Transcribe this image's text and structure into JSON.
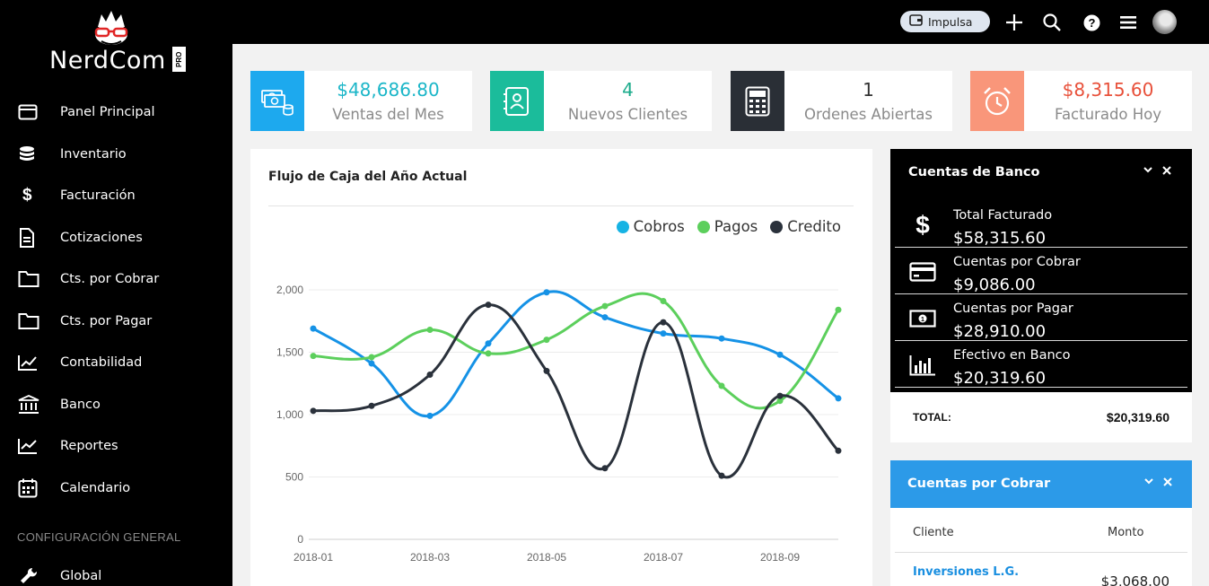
{
  "logo": {
    "text": "NerdCom",
    "badge": "PRO"
  },
  "sidebar": {
    "items": [
      {
        "label": "Panel Principal",
        "icon": "dashboard-icon"
      },
      {
        "label": "Inventario",
        "icon": "database-icon"
      },
      {
        "label": "Facturación",
        "icon": "dollar-icon"
      },
      {
        "label": "Cotizaciones",
        "icon": "document-icon"
      },
      {
        "label": "Cts. por Cobrar",
        "icon": "folder-icon"
      },
      {
        "label": "Cts. por Pagar",
        "icon": "folder-icon"
      },
      {
        "label": "Contabilidad",
        "icon": "line-chart-icon"
      },
      {
        "label": "Banco",
        "icon": "bank-icon"
      },
      {
        "label": "Reportes",
        "icon": "area-chart-icon"
      },
      {
        "label": "Calendario",
        "icon": "calendar-icon"
      }
    ],
    "section_title": "CONFIGURACIÓN GENERAL",
    "global_label": "Global"
  },
  "topbar": {
    "impulsa_label": "Impulsa"
  },
  "stats": [
    {
      "value": "$48,686.80",
      "label": "Ventas del Mes",
      "box_color": "#1da9ee",
      "value_color": "#1bb6c8",
      "icon": "money-icon"
    },
    {
      "value": "4",
      "label": "Nuevos Clientes",
      "box_color": "#1bbc9b",
      "value_color": "#1bab8b",
      "icon": "contacts-icon"
    },
    {
      "value": "1",
      "label": "Ordenes Abiertas",
      "box_color": "#2a2f36",
      "value_color": "#333333",
      "icon": "calculator-icon"
    },
    {
      "value": "$8,315.60",
      "label": "Facturado Hoy",
      "box_color": "#f9967a",
      "value_color": "#e8503a",
      "icon": "alarm-clock-icon"
    }
  ],
  "cashflow": {
    "title": "Flujo de Caja del Año Actual"
  },
  "chart_data": {
    "type": "line",
    "title": "Flujo de Caja del Año Actual",
    "categories": [
      "2018-01",
      "2018-02",
      "2018-03",
      "2018-04",
      "2018-05",
      "2018-06",
      "2018-07",
      "2018-08",
      "2018-09",
      "2018-10"
    ],
    "x_tick_labels": [
      "2018-01",
      "2018-03",
      "2018-05",
      "2018-07",
      "2018-09"
    ],
    "y_ticks": [
      "0",
      "500",
      "1,000",
      "1,500",
      "2,000"
    ],
    "ylim": [
      0,
      2000
    ],
    "legend_position": "top-right",
    "series": [
      {
        "name": "Cobros",
        "color": "#1592e6",
        "values": [
          1690,
          1410,
          990,
          1570,
          1980,
          1780,
          1650,
          1610,
          1480,
          1130
        ]
      },
      {
        "name": "Pagos",
        "color": "#5ccf5c",
        "values": [
          1470,
          1460,
          1680,
          1490,
          1600,
          1870,
          1910,
          1230,
          1110,
          1840
        ]
      },
      {
        "name": "Credito",
        "color": "#2a313b",
        "values": [
          1030,
          1070,
          1320,
          1880,
          1350,
          570,
          1740,
          510,
          1150,
          710
        ]
      }
    ]
  },
  "bank": {
    "title": "Cuentas de Banco",
    "rows": [
      {
        "label": "Total Facturado",
        "value": "$58,315.60",
        "icon": "dollar-icon"
      },
      {
        "label": "Cuentas por Cobrar",
        "value": "$9,086.00",
        "icon": "credit-card-icon"
      },
      {
        "label": "Cuentas por Pagar",
        "value": "$28,910.00",
        "icon": "banknote-icon"
      },
      {
        "label": "Efectivo en Banco",
        "value": "$20,319.60",
        "icon": "bar-chart-icon"
      }
    ],
    "total_label": "TOTAL:",
    "total_value": "$20,319.60"
  },
  "receivables": {
    "title": "Cuentas por Cobrar",
    "col_client": "Cliente",
    "col_amount": "Monto",
    "rows": [
      {
        "client": "Inversiones L.G.",
        "amount": "$3,068.00"
      }
    ],
    "header_color": "#2c9ae8"
  }
}
